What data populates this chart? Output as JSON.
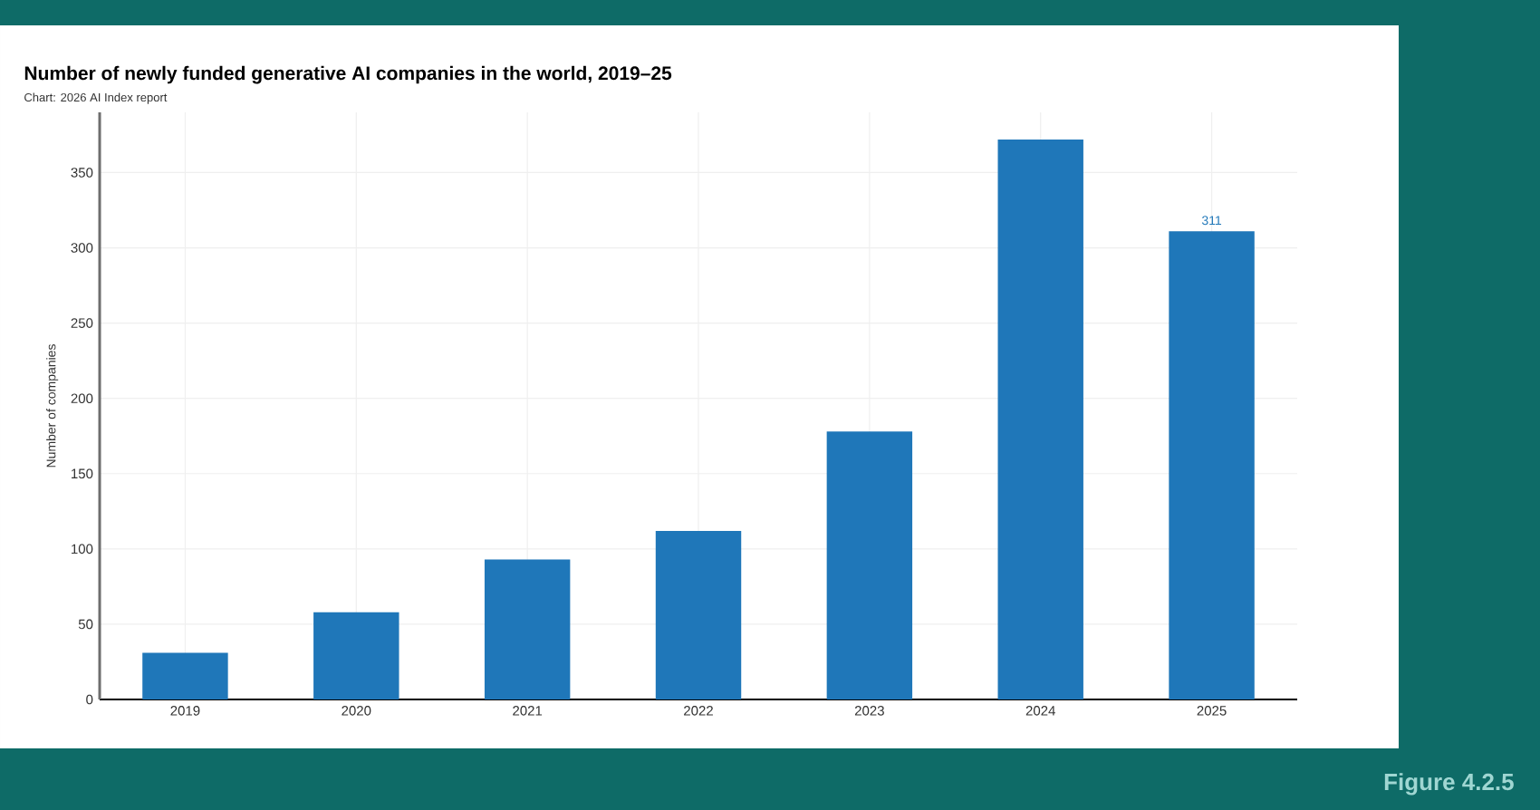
{
  "chart_data": {
    "type": "bar",
    "title": "Number of newly funded generative AI companies in the world, 2019–25",
    "ylabel": "Number of companies",
    "annotations": [
      "Chart: 2026 AI Index report",
      "Figure 4.2.5"
    ],
    "categories": [
      "2019",
      "2020",
      "2021",
      "2022",
      "2023",
      "2024",
      "2025"
    ],
    "values": [
      31,
      58,
      93,
      112,
      178,
      372,
      311
    ],
    "color": "#1f77b9",
    "value_labels": [
      null,
      null,
      null,
      null,
      null,
      null,
      "311"
    ],
    "ylim": [
      0,
      390
    ],
    "yticks": [
      0,
      50,
      100,
      150,
      200,
      250,
      300,
      350
    ],
    "grid": true
  }
}
